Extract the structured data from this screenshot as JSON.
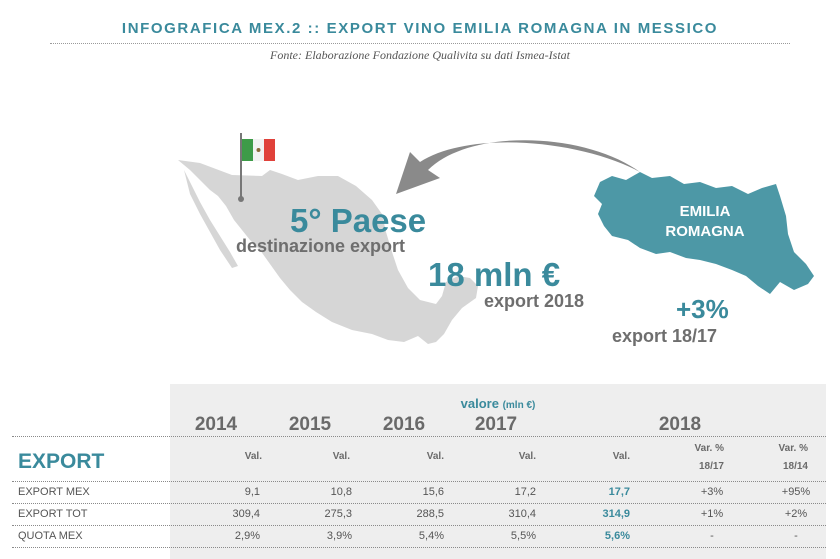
{
  "header": {
    "title": "INFOGRAFICA MEX.2 :: EXPORT VINO EMILIA ROMAGNA IN MESSICO",
    "source": "Fonte: Elaborazione Fondazione Qualivita su dati Ismea-Istat"
  },
  "infographic": {
    "rank": "5° Paese",
    "rank_caption": "destinazione export",
    "value": "18 mln €",
    "value_caption": "export 2018",
    "growth": "+3%",
    "growth_caption": "export 18/17",
    "region": [
      "EMILIA",
      "ROMAGNA"
    ],
    "colors": {
      "accent": "#3a8a9c",
      "map_grey": "#d6d6d6",
      "region_fill": "#4d98a6",
      "arrow": "#8a8a8a",
      "flag_green": "#3d9b48",
      "flag_white": "#f2f2f2",
      "flag_red": "#e0413a"
    }
  },
  "table": {
    "caption": "valore",
    "caption_unit": "(mln €)",
    "years": [
      "2014",
      "2015",
      "2016",
      "2017",
      "2018"
    ],
    "section_title": "EXPORT",
    "col_val": "Val.",
    "col_var1": [
      "Var. %",
      "18/17"
    ],
    "col_var2": [
      "Var. %",
      "18/14"
    ],
    "rows": [
      {
        "label": "EXPORT MEX",
        "values": [
          "9,1",
          "10,8",
          "15,6",
          "17,2",
          "17,7"
        ],
        "var1": "+3%",
        "var2": "+95%"
      },
      {
        "label": "EXPORT TOT",
        "values": [
          "309,4",
          "275,3",
          "288,5",
          "310,4",
          "314,9"
        ],
        "var1": "+1%",
        "var2": "+2%"
      },
      {
        "label": "QUOTA MEX",
        "values": [
          "2,9%",
          "3,9%",
          "5,4%",
          "5,5%",
          "5,6%"
        ],
        "var1": "-",
        "var2": "-"
      }
    ]
  }
}
